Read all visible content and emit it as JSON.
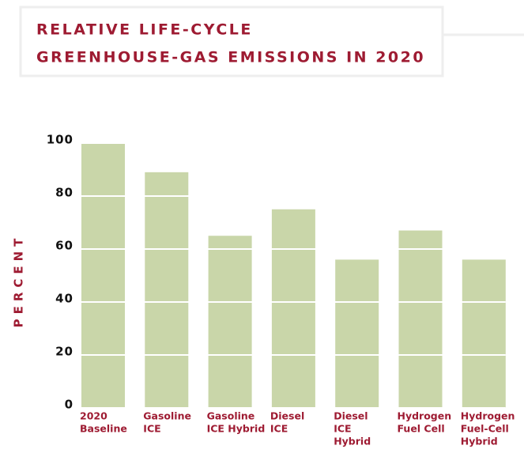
{
  "chart_data": {
    "type": "bar",
    "title": [
      "RELATIVE LIFE-CYCLE",
      "GREENHOUSE-GAS EMISSIONS IN 2020"
    ],
    "ylabel": "PERCENT",
    "categories": [
      [
        "2020",
        "Baseline"
      ],
      [
        "Gasoline",
        "ICE"
      ],
      [
        "Gasoline",
        "ICE Hybrid"
      ],
      [
        "Diesel",
        "ICE"
      ],
      [
        "Diesel",
        "ICE",
        "Hybrid"
      ],
      [
        "Hydrogen",
        "Fuel Cell"
      ],
      [
        "Hydrogen",
        "Fuel-Cell",
        "Hybrid"
      ]
    ],
    "values": [
      100,
      89,
      65,
      75,
      56,
      67,
      56
    ],
    "color": "#c9d6a9",
    "ylim": [
      0,
      100
    ],
    "yticks": [
      0,
      20,
      40,
      60,
      80,
      100
    ],
    "grid": true
  }
}
